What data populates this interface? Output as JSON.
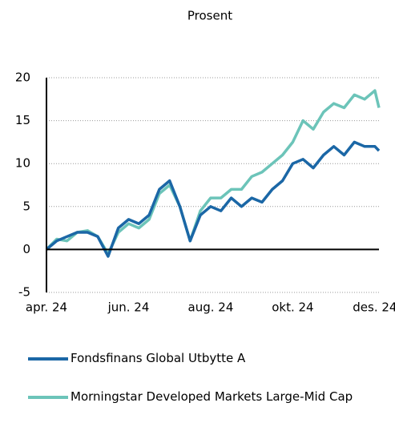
{
  "chart_data": {
    "type": "line",
    "title": "Prosent",
    "x": [
      0,
      0.25,
      0.5,
      0.75,
      1,
      1.25,
      1.5,
      1.75,
      2,
      2.25,
      2.5,
      2.75,
      3,
      3.25,
      3.5,
      3.75,
      4,
      4.25,
      4.5,
      4.75,
      5,
      5.25,
      5.5,
      5.75,
      6,
      6.25,
      6.5,
      6.75,
      7,
      7.25,
      7.5,
      7.75,
      8,
      8.1
    ],
    "series": [
      {
        "name": "Fondsfinans Global Utbytte A",
        "color": "#1b67a6",
        "values": [
          0,
          1,
          1.5,
          2,
          2,
          1.5,
          -0.8,
          2.5,
          3.5,
          3,
          4,
          7,
          8,
          5,
          1,
          4,
          5,
          4.5,
          6,
          5,
          6,
          5.5,
          7,
          8,
          10,
          10.5,
          9.5,
          11,
          12,
          11,
          12.5,
          12,
          12,
          11.5
        ]
      },
      {
        "name": "Morningstar Developed Markets Large-Mid Cap",
        "color": "#6cc4b9",
        "values": [
          0,
          1.2,
          1,
          2,
          2.2,
          1.5,
          -0.5,
          2,
          3,
          2.5,
          3.5,
          6.5,
          7.5,
          5,
          1,
          4.5,
          6,
          6,
          7,
          7,
          8.5,
          9,
          10,
          11,
          12.5,
          15,
          14,
          16,
          17,
          16.5,
          18,
          17.5,
          18.5,
          16.5
        ]
      }
    ],
    "xlim": [
      0,
      8.1
    ],
    "xticks": [
      {
        "value": 0,
        "label": "apr. 24"
      },
      {
        "value": 2,
        "label": "jun. 24"
      },
      {
        "value": 4,
        "label": "aug. 24"
      },
      {
        "value": 6,
        "label": "okt. 24"
      },
      {
        "value": 8,
        "label": "des. 24"
      }
    ],
    "ylim": [
      -5,
      20
    ],
    "yticks": [
      -5,
      0,
      5,
      10,
      15,
      20
    ],
    "grid": true
  }
}
